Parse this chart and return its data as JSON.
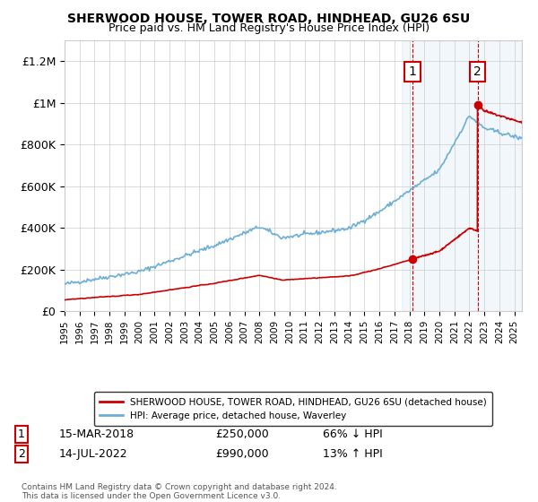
{
  "title": "SHERWOOD HOUSE, TOWER ROAD, HINDHEAD, GU26 6SU",
  "subtitle": "Price paid vs. HM Land Registry's House Price Index (HPI)",
  "legend_line1": "SHERWOOD HOUSE, TOWER ROAD, HINDHEAD, GU26 6SU (detached house)",
  "legend_line2": "HPI: Average price, detached house, Waverley",
  "annotation1_label": "1",
  "annotation1_date": "15-MAR-2018",
  "annotation1_price": "£250,000",
  "annotation1_hpi": "66% ↓ HPI",
  "annotation2_label": "2",
  "annotation2_date": "14-JUL-2022",
  "annotation2_price": "£990,000",
  "annotation2_hpi": "13% ↑ HPI",
  "footer": "Contains HM Land Registry data © Crown copyright and database right 2024.\nThis data is licensed under the Open Government Licence v3.0.",
  "hpi_color": "#6baed6",
  "sale_color": "#cc0000",
  "sale_dot_color": "#cc0000",
  "vline_color": "#cc0000",
  "shade_color": "#cce0f5",
  "ylim": [
    0,
    1300000
  ],
  "yticks": [
    0,
    200000,
    400000,
    600000,
    800000,
    1000000,
    1200000
  ],
  "ytick_labels": [
    "£0",
    "£200K",
    "£400K",
    "£600K",
    "£800K",
    "£1M",
    "£1.2M"
  ],
  "sale1_x": 2018.2,
  "sale1_y": 250000,
  "sale2_x": 2022.54,
  "sale2_y": 990000,
  "xmin": 1995,
  "xmax": 2025.5
}
